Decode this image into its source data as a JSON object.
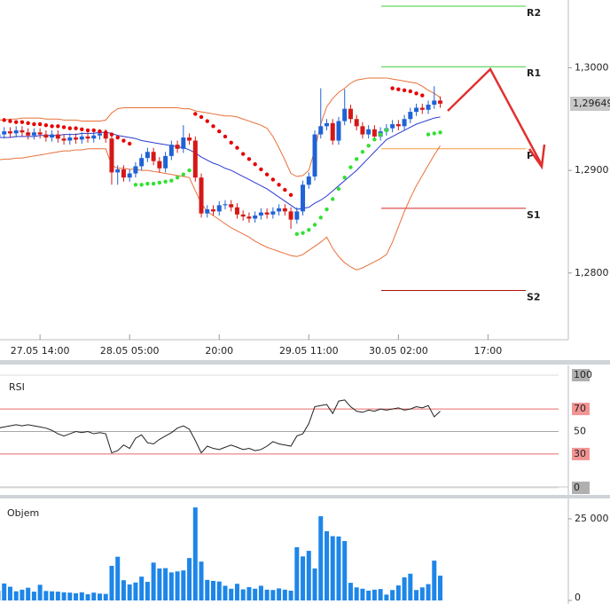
{
  "chart_data": [
    {
      "type": "candlestick",
      "x": [
        0,
        1,
        2,
        3,
        4,
        5,
        6,
        7,
        8,
        9,
        10,
        11,
        12,
        13,
        14,
        15,
        16,
        17,
        18,
        19,
        20,
        21,
        22,
        23,
        24,
        25,
        26,
        27,
        28,
        29,
        30,
        31,
        32,
        33,
        34,
        35,
        36,
        37,
        38,
        39,
        40,
        41,
        42,
        43,
        44,
        45,
        46,
        47,
        48,
        49,
        50,
        51,
        52,
        53,
        54,
        55,
        56,
        57,
        58,
        59,
        60,
        61,
        62,
        63,
        64,
        65,
        66,
        67,
        68,
        69,
        70,
        71,
        72,
        73,
        74
      ],
      "open": [
        1.2933,
        1.2935,
        1.2938,
        1.2936,
        1.2939,
        1.2937,
        1.2934,
        1.2937,
        1.2935,
        1.2932,
        1.2935,
        1.2931,
        1.2929,
        1.2932,
        1.293,
        1.2933,
        1.2931,
        1.2934,
        1.2936,
        1.2931,
        1.2898,
        1.2901,
        1.2893,
        1.2897,
        1.2904,
        1.2912,
        1.2918,
        1.2909,
        1.2902,
        1.2914,
        1.2925,
        1.2921,
        1.2932,
        1.2929,
        1.2893,
        1.2858,
        1.2862,
        1.286,
        1.2866,
        1.2867,
        1.2864,
        1.2857,
        1.2855,
        1.2853,
        1.2856,
        1.2859,
        1.2857,
        1.286,
        1.2863,
        1.286,
        1.2852,
        1.286,
        1.2886,
        1.2894,
        1.2935,
        1.2943,
        1.2946,
        1.2929,
        1.2948,
        1.296,
        1.295,
        1.2943,
        1.2935,
        1.294,
        1.2933,
        1.2938,
        1.2941,
        1.2945,
        1.2943,
        1.295,
        1.2957,
        1.2961,
        1.2959,
        1.2964,
        1.2968
      ],
      "high": [
        1.2939,
        1.2942,
        1.2942,
        1.2943,
        1.2943,
        1.2941,
        1.2941,
        1.2941,
        1.2939,
        1.2939,
        1.2939,
        1.2935,
        1.2936,
        1.2936,
        1.2937,
        1.2937,
        1.2938,
        1.294,
        1.294,
        1.2935,
        1.2905,
        1.2905,
        1.2901,
        1.2908,
        1.2916,
        1.2922,
        1.2922,
        1.2913,
        1.2918,
        1.2929,
        1.2929,
        1.2944,
        1.2936,
        1.2933,
        1.2897,
        1.2866,
        1.2866,
        1.287,
        1.2871,
        1.2871,
        1.2868,
        1.2861,
        1.2859,
        1.286,
        1.2863,
        1.2863,
        1.2864,
        1.2867,
        1.2867,
        1.2864,
        1.2864,
        1.289,
        1.2898,
        1.2939,
        1.298,
        1.295,
        1.295,
        1.2952,
        1.2979,
        1.2964,
        1.2954,
        1.2947,
        1.2944,
        1.2944,
        1.2942,
        1.2945,
        1.2949,
        1.2949,
        1.2954,
        1.2961,
        1.2965,
        1.2965,
        1.2968,
        1.2982,
        1.2972
      ],
      "low": [
        1.2929,
        1.2931,
        1.2932,
        1.2932,
        1.2933,
        1.293,
        1.293,
        1.2931,
        1.2928,
        1.2928,
        1.2927,
        1.2925,
        1.2925,
        1.2926,
        1.2926,
        1.2927,
        1.2927,
        1.293,
        1.2927,
        1.2886,
        1.2886,
        1.2889,
        1.2889,
        1.2893,
        1.29,
        1.2908,
        1.2905,
        1.2898,
        1.2898,
        1.291,
        1.2917,
        1.2917,
        1.2925,
        1.2889,
        1.2854,
        1.2854,
        1.2856,
        1.2856,
        1.2862,
        1.286,
        1.2853,
        1.2851,
        1.2849,
        1.2849,
        1.2852,
        1.2853,
        1.2853,
        1.2856,
        1.2856,
        1.2843,
        1.2848,
        1.2856,
        1.2882,
        1.289,
        1.2931,
        1.2939,
        1.2925,
        1.2925,
        1.2944,
        1.2946,
        1.2939,
        1.2931,
        1.2931,
        1.2929,
        1.2929,
        1.2934,
        1.2937,
        1.2939,
        1.2939,
        1.2946,
        1.2953,
        1.2955,
        1.2955,
        1.296,
        1.2961
      ],
      "close": [
        1.2935,
        1.2938,
        1.2936,
        1.2939,
        1.2937,
        1.2934,
        1.2937,
        1.2935,
        1.2932,
        1.2935,
        1.2931,
        1.2929,
        1.2932,
        1.293,
        1.2933,
        1.2931,
        1.2934,
        1.2936,
        1.2931,
        1.2898,
        1.2901,
        1.2893,
        1.2897,
        1.2904,
        1.2912,
        1.2918,
        1.2909,
        1.2902,
        1.2914,
        1.2925,
        1.2921,
        1.2932,
        1.2929,
        1.2893,
        1.2858,
        1.2862,
        1.286,
        1.2866,
        1.2867,
        1.2864,
        1.2857,
        1.2855,
        1.2853,
        1.2856,
        1.2859,
        1.2857,
        1.286,
        1.2863,
        1.286,
        1.2852,
        1.286,
        1.2886,
        1.2894,
        1.2935,
        1.2943,
        1.2946,
        1.2929,
        1.2948,
        1.296,
        1.295,
        1.2943,
        1.2935,
        1.294,
        1.2933,
        1.2938,
        1.2941,
        1.2945,
        1.2943,
        1.295,
        1.2957,
        1.2961,
        1.2959,
        1.2964,
        1.2968,
        1.2965
      ],
      "up_color": "#1f62d6",
      "down_color": "#d41818",
      "bollinger_upper": [
        1.2949,
        1.2949,
        1.295,
        1.295,
        1.2951,
        1.2951,
        1.2951,
        1.2951,
        1.295,
        1.295,
        1.295,
        1.2949,
        1.2949,
        1.2949,
        1.2948,
        1.2948,
        1.2948,
        1.2948,
        1.2949,
        1.2956,
        1.296,
        1.2961,
        1.2961,
        1.2961,
        1.2961,
        1.2961,
        1.2961,
        1.2961,
        1.2961,
        1.2961,
        1.2961,
        1.296,
        1.296,
        1.2958,
        1.2957,
        1.2956,
        1.2955,
        1.2954,
        1.2953,
        1.2953,
        1.2952,
        1.295,
        1.2948,
        1.2946,
        1.2944,
        1.2941,
        1.2933,
        1.2922,
        1.291,
        1.2897,
        1.2894,
        1.2895,
        1.29,
        1.292,
        1.2945,
        1.2962,
        1.297,
        1.2976,
        1.298,
        1.2985,
        1.2988,
        1.2989,
        1.299,
        1.299,
        1.299,
        1.299,
        1.2989,
        1.2988,
        1.2987,
        1.2986,
        1.2985,
        1.2982,
        1.2978,
        1.2975,
        1.2971
      ],
      "bollinger_lower": [
        1.291,
        1.2911,
        1.2911,
        1.2912,
        1.2912,
        1.2913,
        1.2914,
        1.2915,
        1.2916,
        1.2917,
        1.2918,
        1.2919,
        1.2919,
        1.292,
        1.292,
        1.2921,
        1.2921,
        1.2921,
        1.2921,
        1.2905,
        1.2902,
        1.2902,
        1.2901,
        1.2901,
        1.29,
        1.29,
        1.2899,
        1.2898,
        1.2897,
        1.2896,
        1.2895,
        1.2894,
        1.2893,
        1.288,
        1.2868,
        1.286,
        1.2856,
        1.2852,
        1.2848,
        1.2844,
        1.2841,
        1.2838,
        1.2835,
        1.2831,
        1.2828,
        1.2825,
        1.2823,
        1.2821,
        1.2819,
        1.2817,
        1.2816,
        1.2818,
        1.2822,
        1.2826,
        1.283,
        1.2835,
        1.2824,
        1.2816,
        1.281,
        1.2806,
        1.2803,
        1.2805,
        1.2808,
        1.2811,
        1.2814,
        1.2818,
        1.283,
        1.2845,
        1.286,
        1.2873,
        1.2885,
        1.2895,
        1.2905,
        1.2915,
        1.2924
      ],
      "bollinger_color": "#e8703a",
      "ma": [
        1.2932,
        1.2932,
        1.2932,
        1.2933,
        1.2933,
        1.2933,
        1.2933,
        1.2934,
        1.2934,
        1.2934,
        1.2934,
        1.2935,
        1.2935,
        1.2935,
        1.2936,
        1.2936,
        1.2936,
        1.2937,
        1.2937,
        1.2936,
        1.2934,
        1.2933,
        1.2932,
        1.2931,
        1.2929,
        1.2928,
        1.2927,
        1.2926,
        1.2925,
        1.2924,
        1.2923,
        1.2922,
        1.292,
        1.2917,
        1.2913,
        1.291,
        1.2907,
        1.2905,
        1.2902,
        1.29,
        1.2897,
        1.2894,
        1.2891,
        1.2888,
        1.2885,
        1.2882,
        1.2878,
        1.2874,
        1.287,
        1.2866,
        1.2862,
        1.2863,
        1.2864,
        1.2868,
        1.2871,
        1.2875,
        1.288,
        1.2885,
        1.289,
        1.2895,
        1.29,
        1.2906,
        1.2912,
        1.2918,
        1.2924,
        1.293,
        1.2933,
        1.2936,
        1.2939,
        1.2942,
        1.2945,
        1.2947,
        1.2949,
        1.2951,
        1.2952
      ],
      "ma_color": "#2a3ad0",
      "sar": [
        1.295,
        1.2949,
        1.2948,
        1.2947,
        1.2947,
        1.2946,
        1.2945,
        1.2945,
        1.2944,
        1.2943,
        1.2943,
        1.2942,
        1.2941,
        1.2941,
        1.294,
        1.2939,
        1.2939,
        1.2938,
        1.2937,
        1.2935,
        1.2932,
        1.2929,
        1.2926,
        1.2886,
        1.2886,
        1.2887,
        1.2887,
        1.2888,
        1.2889,
        1.289,
        1.2893,
        1.2896,
        1.29,
        1.2955,
        1.2952,
        1.2948,
        1.2943,
        1.2938,
        1.2933,
        1.2927,
        1.2922,
        1.2916,
        1.2911,
        1.2906,
        1.2901,
        1.2896,
        1.2891,
        1.2886,
        1.2881,
        1.2876,
        1.2838,
        1.2839,
        1.2842,
        1.2847,
        1.2854,
        1.2862,
        1.2872,
        1.2882,
        1.2893,
        1.2903,
        1.2911,
        1.2918,
        1.2924,
        1.293,
        1.2935,
        1.2939,
        1.298,
        1.2979,
        1.2978,
        1.2977,
        1.2975,
        1.2973,
        1.2935,
        1.2936,
        1.2937
      ],
      "sar_colors": {
        "above": "#e60000",
        "below": "#33e033"
      },
      "pivots": [
        {
          "label": "R2",
          "value": 1.306,
          "color": "#3ccc3c"
        },
        {
          "label": "R1",
          "value": 1.3001,
          "color": "#3ccc3c"
        },
        {
          "label": "P",
          "value": 1.2921,
          "color": "#f0a040"
        },
        {
          "label": "S1",
          "value": 1.2863,
          "color": "#d62020"
        },
        {
          "label": "S2",
          "value": 1.2783,
          "color": "#b01010"
        }
      ],
      "last_price": {
        "value": 1.29649,
        "label": "1,29649"
      },
      "xlim": [
        0.3,
        95.3
      ],
      "xticks": [
        {
          "value": 7,
          "label": "27.05 14:00"
        },
        {
          "value": 22,
          "label": "28.05 05:00"
        },
        {
          "value": 37,
          "label": "20:00"
        },
        {
          "value": 52,
          "label": "29.05 11:00"
        },
        {
          "value": 67,
          "label": "30.05 02:00"
        },
        {
          "value": 82,
          "label": "17:00"
        }
      ],
      "ylim": [
        1.2735,
        1.3066
      ],
      "yticks": [
        {
          "value": 1.3,
          "label": "1,3000"
        },
        {
          "value": 1.29,
          "label": "1,2900"
        },
        {
          "value": 1.28,
          "label": "1,2800"
        }
      ]
    },
    {
      "type": "line",
      "title": "RSI",
      "x": [
        0,
        1,
        2,
        3,
        4,
        5,
        6,
        7,
        8,
        9,
        10,
        11,
        12,
        13,
        14,
        15,
        16,
        17,
        18,
        19,
        20,
        21,
        22,
        23,
        24,
        25,
        26,
        27,
        28,
        29,
        30,
        31,
        32,
        33,
        34,
        35,
        36,
        37,
        38,
        39,
        40,
        41,
        42,
        43,
        44,
        45,
        46,
        47,
        48,
        49,
        50,
        51,
        52,
        53,
        54,
        55,
        56,
        57,
        58,
        59,
        60,
        61,
        62,
        63,
        64,
        65,
        66,
        67,
        68,
        69,
        70,
        71,
        72,
        73,
        74
      ],
      "values": [
        53,
        54,
        55,
        56,
        55,
        56,
        55,
        54,
        53,
        51,
        48,
        46,
        48,
        50,
        49,
        50,
        48,
        49,
        48,
        31,
        33,
        38,
        35,
        44,
        47,
        40,
        39,
        43,
        46,
        49,
        53,
        55,
        52,
        42,
        31,
        37,
        35,
        34,
        36,
        38,
        36,
        34,
        35,
        33,
        34,
        37,
        41,
        39,
        38,
        37,
        46,
        48,
        57,
        72,
        73,
        74,
        66,
        77,
        78,
        72,
        68,
        67,
        69,
        68,
        70,
        69,
        70,
        71,
        69,
        70,
        72,
        71,
        73,
        63,
        68
      ],
      "color": "#222222",
      "xlim": [
        0.3,
        95.3
      ],
      "ylim": [
        0,
        100
      ],
      "yticks": [
        0,
        30,
        50,
        70,
        100
      ],
      "grid_colors": [
        "#dddddd",
        "#e86a6a",
        "#a8a8a8",
        "#e86a6a",
        "#dddddd"
      ],
      "tick_backgrounds": [
        "#b0b0b0",
        "#f29494",
        "#ffffff",
        "#f29494",
        "#b0b0b0"
      ]
    },
    {
      "type": "bar",
      "title": "Objem",
      "x": [
        0,
        1,
        2,
        3,
        4,
        5,
        6,
        7,
        8,
        9,
        10,
        11,
        12,
        13,
        14,
        15,
        16,
        17,
        18,
        19,
        20,
        21,
        22,
        23,
        24,
        25,
        26,
        27,
        28,
        29,
        30,
        31,
        32,
        33,
        34,
        35,
        36,
        37,
        38,
        39,
        40,
        41,
        42,
        43,
        44,
        45,
        46,
        47,
        48,
        49,
        50,
        51,
        52,
        53,
        54,
        55,
        56,
        57,
        58,
        59,
        60,
        61,
        62,
        63,
        64,
        65,
        66,
        67,
        68,
        69,
        70,
        71,
        72,
        73,
        74
      ],
      "values": [
        3000,
        5200,
        4200,
        2800,
        3300,
        3900,
        2700,
        4800,
        2900,
        2800,
        2700,
        2500,
        2400,
        2200,
        2500,
        1900,
        2400,
        2100,
        2000,
        10600,
        13400,
        6200,
        4900,
        5500,
        7300,
        5700,
        11600,
        9800,
        9900,
        8600,
        8900,
        9200,
        13000,
        28500,
        11900,
        6300,
        6000,
        5800,
        4500,
        3600,
        5100,
        3400,
        4100,
        3600,
        4500,
        3300,
        3200,
        3700,
        3300,
        3000,
        16300,
        13500,
        15200,
        9800,
        25800,
        21200,
        19700,
        19600,
        18200,
        5400,
        4000,
        3600,
        3000,
        3300,
        3500,
        1800,
        3200,
        4600,
        7100,
        8200,
        3200,
        4000,
        5000,
        12200,
        7600
      ],
      "color": "#1e86e8",
      "xlim": [
        0.3,
        95.3
      ],
      "ylim": [
        0,
        30000
      ],
      "yticks": [
        0,
        {
          "value": 25000,
          "label": "25 000"
        }
      ]
    }
  ]
}
